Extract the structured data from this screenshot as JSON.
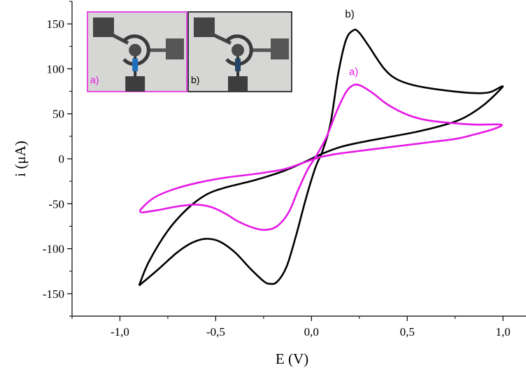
{
  "chart_data": {
    "type": "line",
    "xlabel": "E (V)",
    "ylabel": "i (μA)",
    "xlim": [
      -1.25,
      1.12
    ],
    "ylim": [
      -175,
      175
    ],
    "x_ticks": [
      -1.0,
      -0.5,
      0.0,
      0.5,
      1.0
    ],
    "x_tick_labels": [
      "-1,0",
      "-0,5",
      "0,0",
      "0,5",
      "1,0"
    ],
    "y_ticks": [
      -150,
      -100,
      -50,
      0,
      50,
      100,
      150
    ],
    "y_tick_labels": [
      "-150",
      "-100",
      "-50",
      "0",
      "50",
      "100",
      "150"
    ],
    "grid": false,
    "series": [
      {
        "name": "b)",
        "color": "#000000",
        "points": [
          [
            -0.9,
            -141
          ],
          [
            -0.8,
            -123
          ],
          [
            -0.7,
            -104
          ],
          [
            -0.62,
            -93
          ],
          [
            -0.55,
            -89
          ],
          [
            -0.48,
            -92
          ],
          [
            -0.4,
            -104
          ],
          [
            -0.32,
            -122
          ],
          [
            -0.25,
            -136
          ],
          [
            -0.22,
            -139
          ],
          [
            -0.18,
            -137
          ],
          [
            -0.13,
            -120
          ],
          [
            -0.08,
            -85
          ],
          [
            -0.03,
            -45
          ],
          [
            0.02,
            -10
          ],
          [
            0.06,
            10
          ],
          [
            0.1,
            40
          ],
          [
            0.14,
            95
          ],
          [
            0.18,
            132
          ],
          [
            0.22,
            143
          ],
          [
            0.25,
            140
          ],
          [
            0.3,
            125
          ],
          [
            0.38,
            100
          ],
          [
            0.45,
            88
          ],
          [
            0.55,
            81
          ],
          [
            0.7,
            76
          ],
          [
            0.85,
            73
          ],
          [
            0.93,
            74
          ],
          [
            0.99,
            80
          ],
          [
            0.99,
            78
          ],
          [
            0.9,
            60
          ],
          [
            0.8,
            46
          ],
          [
            0.7,
            38
          ],
          [
            0.55,
            30
          ],
          [
            0.4,
            24
          ],
          [
            0.25,
            18
          ],
          [
            0.15,
            13
          ],
          [
            0.05,
            5
          ],
          [
            -0.05,
            -5
          ],
          [
            -0.15,
            -14
          ],
          [
            -0.3,
            -24
          ],
          [
            -0.45,
            -32
          ],
          [
            -0.55,
            -40
          ],
          [
            -0.65,
            -56
          ],
          [
            -0.75,
            -80
          ],
          [
            -0.85,
            -115
          ],
          [
            -0.9,
            -141
          ]
        ]
      },
      {
        "name": "a)",
        "color": "#e619e6",
        "points": [
          [
            -0.89,
            -60
          ],
          [
            -0.8,
            -57
          ],
          [
            -0.7,
            -53
          ],
          [
            -0.6,
            -51
          ],
          [
            -0.52,
            -54
          ],
          [
            -0.45,
            -61
          ],
          [
            -0.38,
            -70
          ],
          [
            -0.3,
            -77
          ],
          [
            -0.24,
            -79
          ],
          [
            -0.18,
            -75
          ],
          [
            -0.12,
            -60
          ],
          [
            -0.07,
            -35
          ],
          [
            -0.02,
            -12
          ],
          [
            0.03,
            5
          ],
          [
            0.08,
            25
          ],
          [
            0.13,
            52
          ],
          [
            0.18,
            74
          ],
          [
            0.22,
            82
          ],
          [
            0.26,
            81
          ],
          [
            0.32,
            73
          ],
          [
            0.4,
            60
          ],
          [
            0.5,
            49
          ],
          [
            0.6,
            43
          ],
          [
            0.72,
            40
          ],
          [
            0.85,
            38
          ],
          [
            0.99,
            38
          ],
          [
            0.95,
            33
          ],
          [
            0.85,
            27
          ],
          [
            0.75,
            22
          ],
          [
            0.6,
            18
          ],
          [
            0.45,
            14
          ],
          [
            0.3,
            10
          ],
          [
            0.15,
            6
          ],
          [
            0.05,
            2
          ],
          [
            -0.05,
            -5
          ],
          [
            -0.15,
            -12
          ],
          [
            -0.3,
            -17
          ],
          [
            -0.45,
            -21
          ],
          [
            -0.6,
            -27
          ],
          [
            -0.72,
            -34
          ],
          [
            -0.82,
            -43
          ],
          [
            -0.89,
            -56
          ],
          [
            -0.89,
            -60
          ]
        ]
      }
    ],
    "annotations": [
      {
        "text": "b)",
        "x": 0.2,
        "y": 157,
        "color": "#000000"
      },
      {
        "text": "a)",
        "x": 0.22,
        "y": 93,
        "color": "#e619e6"
      }
    ],
    "insets": [
      {
        "label": "a)",
        "border_color": "#e619e6",
        "label_color": "#e619e6"
      },
      {
        "label": "b)",
        "border_color": "#000000",
        "label_color": "#000000"
      }
    ]
  }
}
